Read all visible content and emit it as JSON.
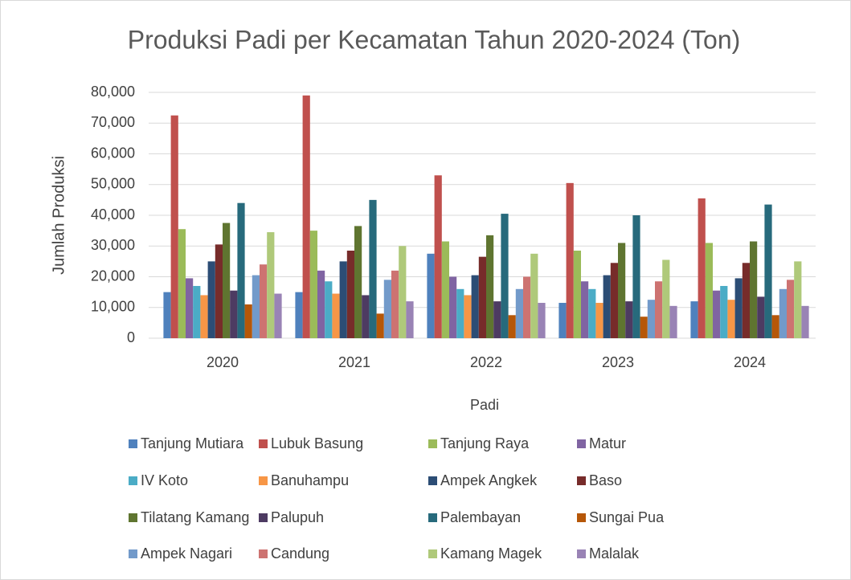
{
  "chart_data": {
    "type": "bar",
    "title": "Produksi Padi per Kecamatan Tahun 2020-2024 (Ton)",
    "x_label": "Padi",
    "y_label": "Jumlah Produksi",
    "categories": [
      "2020",
      "2021",
      "2022",
      "2023",
      "2024"
    ],
    "ylim": [
      0,
      80000
    ],
    "yticks": [
      0,
      {
        "value": 10000,
        "label": "10,000"
      },
      {
        "value": 20000,
        "label": "20,000"
      },
      {
        "value": 30000,
        "label": "30,000"
      },
      {
        "value": 40000,
        "label": "40,000"
      },
      {
        "value": 50000,
        "label": "50,000"
      },
      {
        "value": 60000,
        "label": "60,000"
      },
      {
        "value": 70000,
        "label": "70,000"
      },
      {
        "value": 80000,
        "label": "80,000"
      }
    ],
    "grid": true,
    "legend": "bottom",
    "series": [
      {
        "name": "Tanjung Mutiara",
        "color": "#4f81bd",
        "values": [
          15000,
          15000,
          27500,
          11500,
          12000
        ]
      },
      {
        "name": "Lubuk Basung",
        "color": "#c0504d",
        "values": [
          72500,
          79000,
          53000,
          50500,
          45500
        ]
      },
      {
        "name": "Tanjung Raya",
        "color": "#9bbb59",
        "values": [
          35500,
          35000,
          31500,
          28500,
          31000
        ]
      },
      {
        "name": "Matur",
        "color": "#8064a2",
        "values": [
          19500,
          22000,
          20000,
          18500,
          15500
        ]
      },
      {
        "name": "IV Koto",
        "color": "#4bacc6",
        "values": [
          17000,
          18500,
          16000,
          16000,
          17000
        ]
      },
      {
        "name": "Banuhampu",
        "color": "#f79646",
        "values": [
          14000,
          14500,
          14000,
          11500,
          12500
        ]
      },
      {
        "name": "Ampek Angkek",
        "color": "#2c4d75",
        "values": [
          25000,
          25000,
          20500,
          20500,
          19500
        ]
      },
      {
        "name": "Baso",
        "color": "#772c2a",
        "values": [
          30500,
          28500,
          26500,
          24500,
          24500
        ]
      },
      {
        "name": "Tilatang Kamang",
        "color": "#5f7530",
        "values": [
          37500,
          36500,
          33500,
          31000,
          31500
        ]
      },
      {
        "name": "Palupuh",
        "color": "#4d3b62",
        "values": [
          15500,
          14000,
          12000,
          12000,
          13500
        ]
      },
      {
        "name": "Palembayan",
        "color": "#276a7c",
        "values": [
          44000,
          45000,
          40500,
          40000,
          43500
        ]
      },
      {
        "name": "Sungai Pua",
        "color": "#b65708",
        "values": [
          11000,
          8000,
          7500,
          7000,
          7500
        ]
      },
      {
        "name": "Ampek Nagari",
        "color": "#729aca",
        "values": [
          20500,
          19000,
          16000,
          12500,
          16000
        ]
      },
      {
        "name": "Candung",
        "color": "#cd7371",
        "values": [
          24000,
          22000,
          20000,
          18500,
          19000
        ]
      },
      {
        "name": "Kamang Magek",
        "color": "#afc97a",
        "values": [
          34500,
          30000,
          27500,
          25500,
          25000
        ]
      },
      {
        "name": "Malalak",
        "color": "#9983b5",
        "values": [
          14500,
          12000,
          11500,
          10500,
          10500
        ]
      }
    ]
  }
}
